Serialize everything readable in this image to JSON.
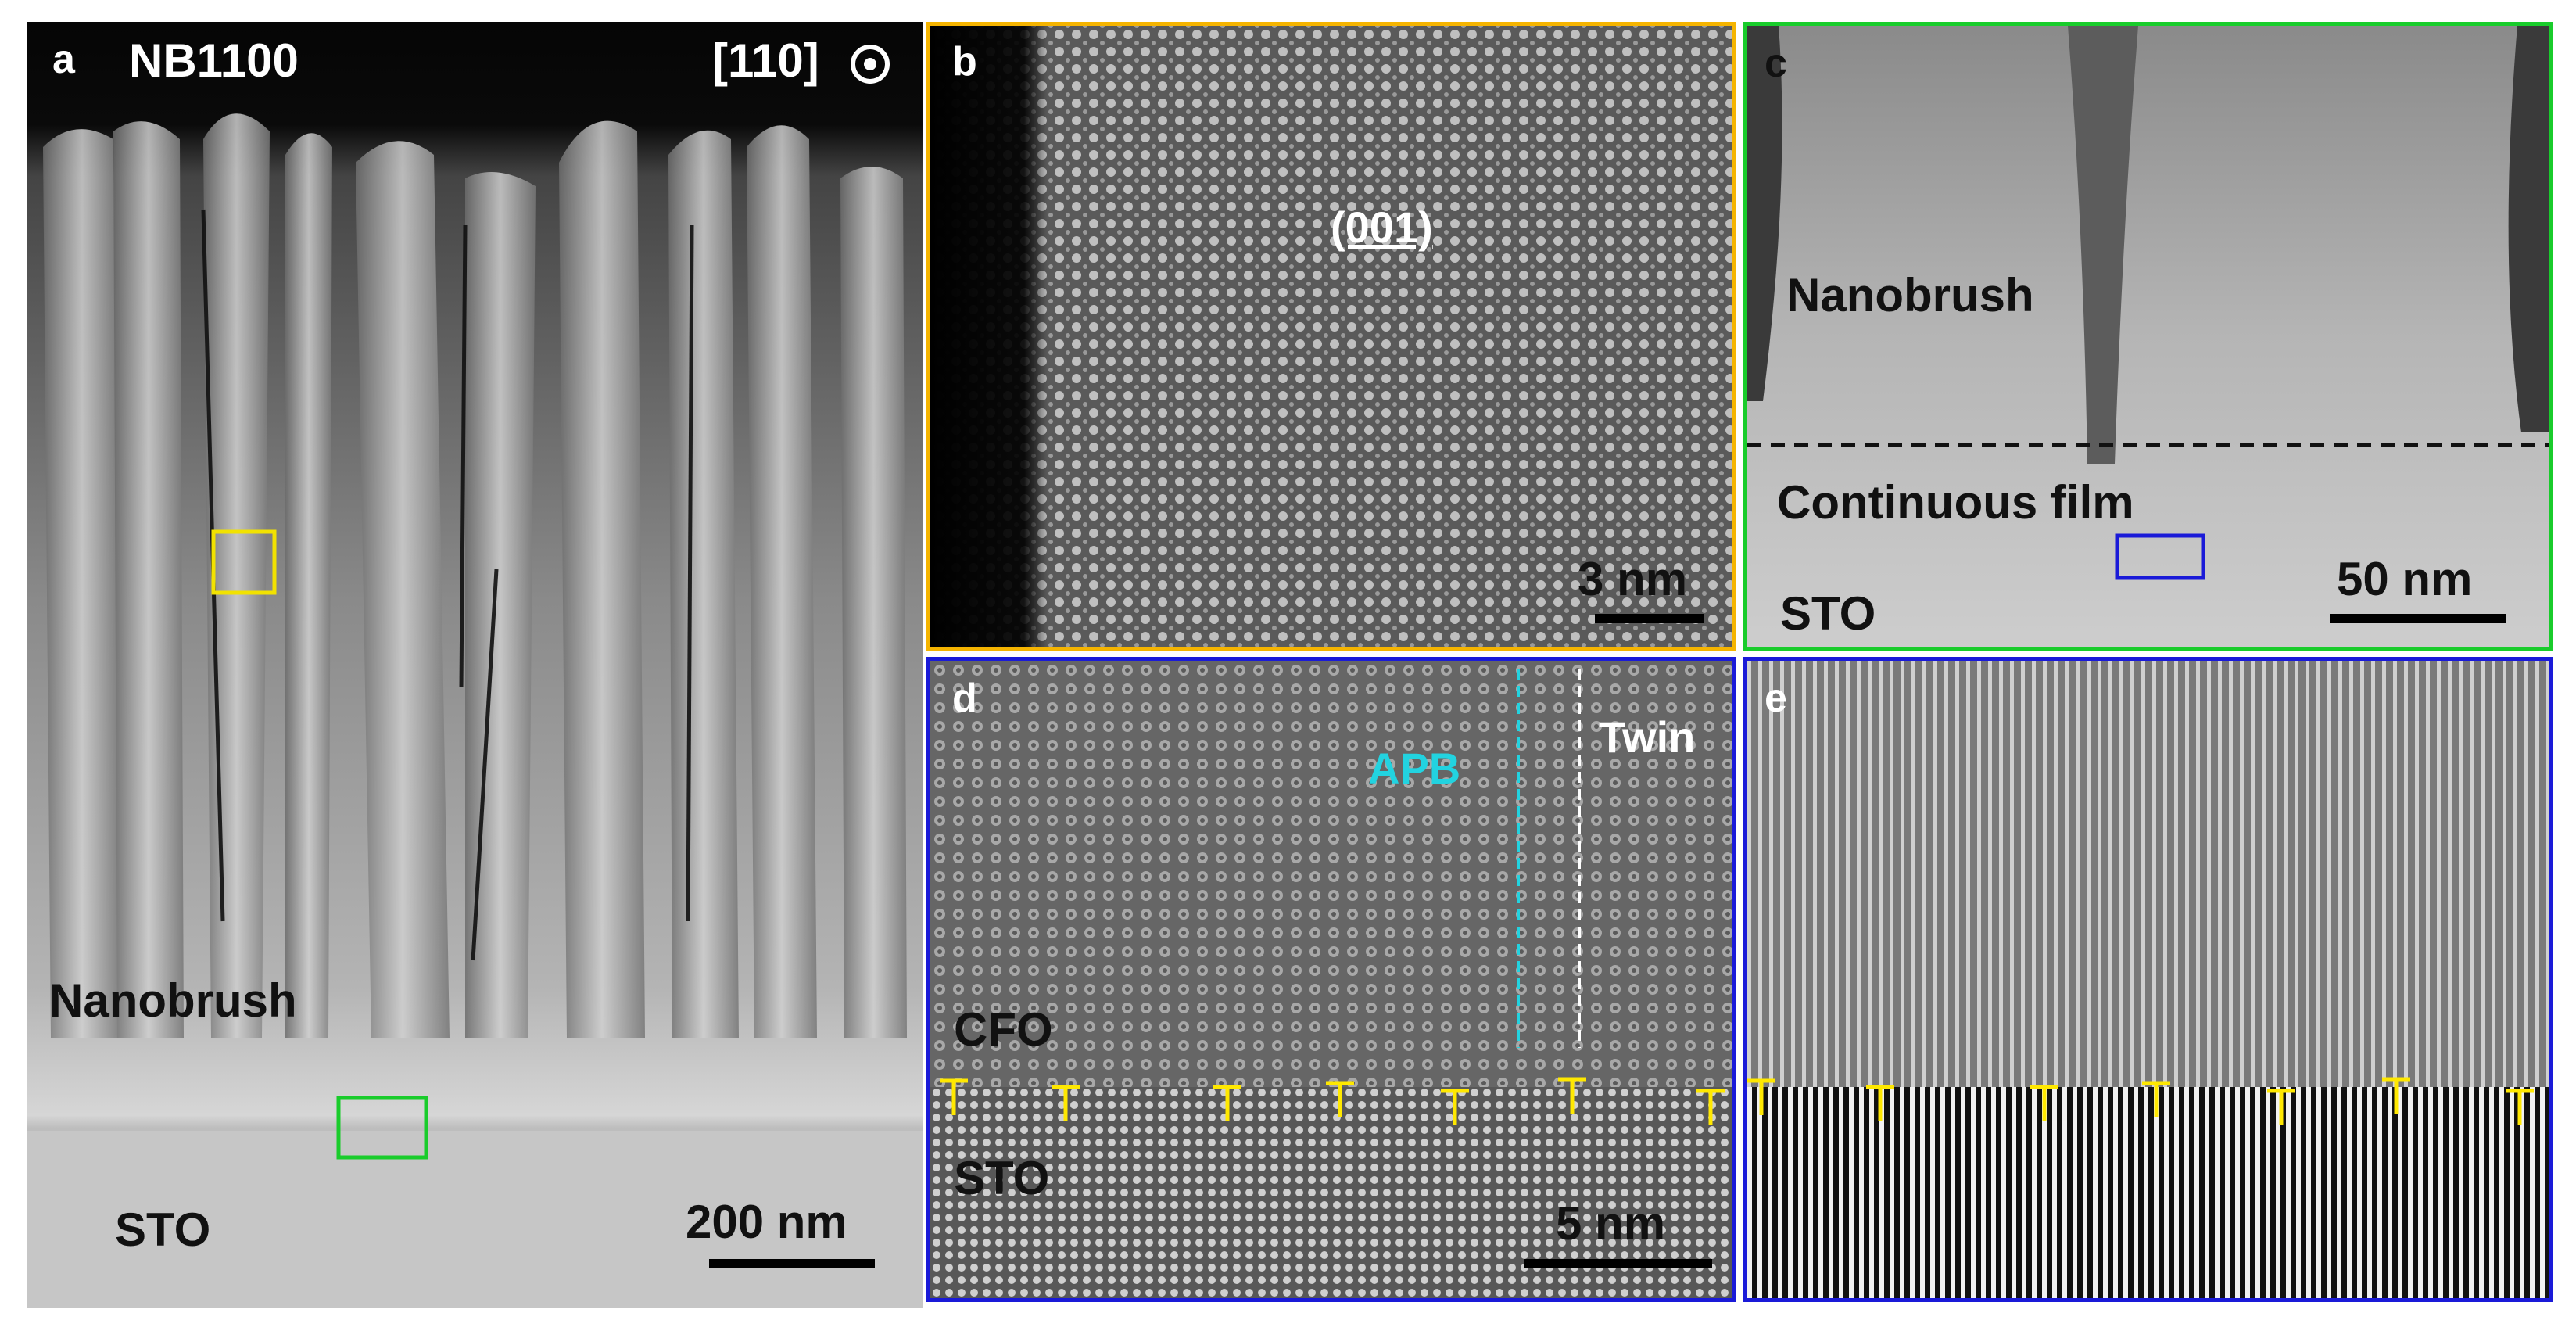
{
  "colors": {
    "panel_b_border": "#f5b400",
    "panel_c_border": "#19cc2b",
    "panel_d_border": "#1a1ad8",
    "panel_e_border": "#1a1ad8",
    "yellow_box": "#f2e200",
    "green_box": "#19cc2b",
    "blue_box": "#1a1ad8",
    "apb_color": "#22d3e0",
    "dislocation_color": "#ffe800"
  },
  "panels": {
    "a": {
      "letter": "a",
      "title": "NB1100",
      "zone_axis": "[110]",
      "zone_axis_icon": "circle-dot-icon",
      "region_top": "Nanobrush",
      "region_bottom": "STO",
      "scale": "200 nm"
    },
    "b": {
      "letter": "b",
      "plane": "(001)",
      "scale": "3 nm"
    },
    "c": {
      "letter": "c",
      "region_top": "Nanobrush",
      "region_mid": "Continuous film",
      "region_bottom": "STO",
      "scale": "50 nm"
    },
    "d": {
      "letter": "d",
      "apb": "APB",
      "twin": "Twin",
      "film": "CFO",
      "substrate": "STO",
      "scale": "5 nm"
    },
    "e": {
      "letter": "e"
    }
  }
}
